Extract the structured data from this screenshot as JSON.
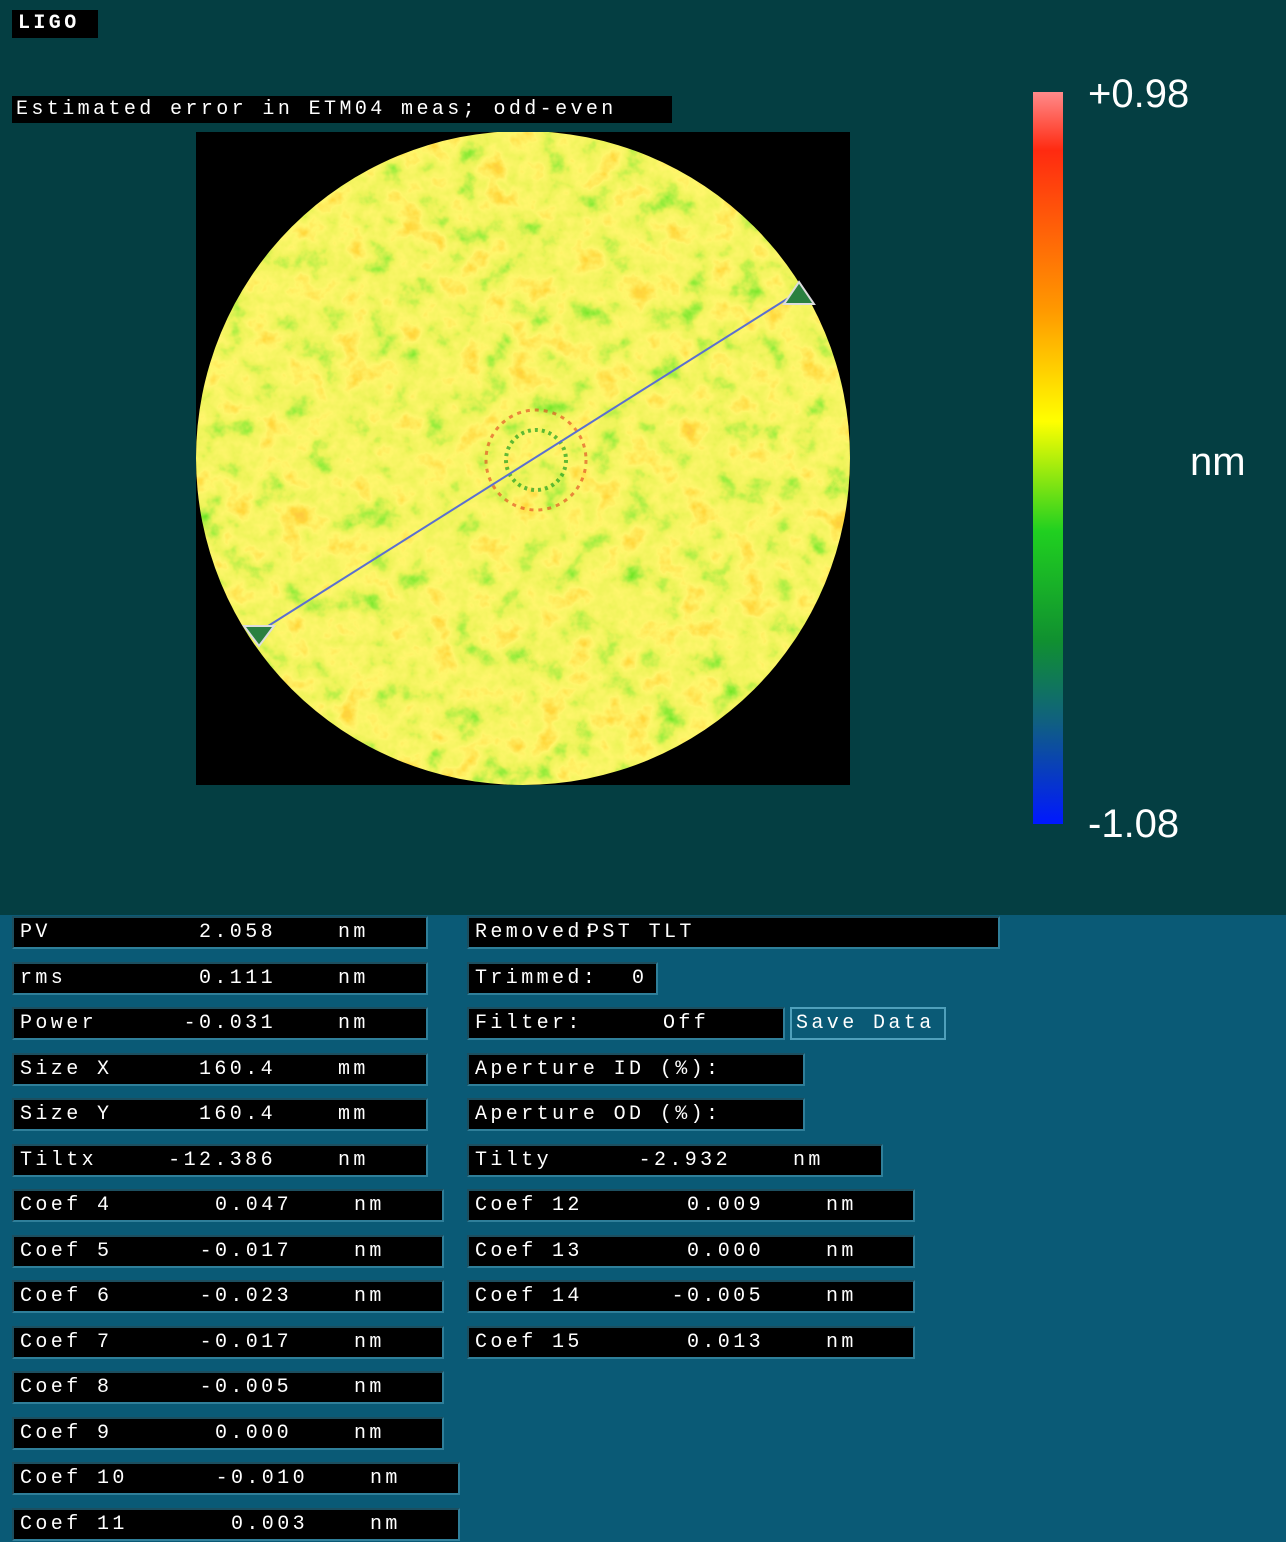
{
  "header": {
    "title": "LIGO"
  },
  "plot": {
    "title": "Estimated error in ETM04 meas; odd-even",
    "colorbar": {
      "max": "+0.98",
      "min": "-1.08",
      "unit": "nm"
    }
  },
  "left_fields": [
    {
      "label": "PV",
      "value": "2.058",
      "unit": "nm"
    },
    {
      "label": "rms",
      "value": "0.111",
      "unit": "nm"
    },
    {
      "label": "Power",
      "value": "-0.031",
      "unit": "nm"
    },
    {
      "label": "Size X",
      "value": "160.4",
      "unit": "mm"
    },
    {
      "label": "Size Y",
      "value": "160.4",
      "unit": "mm"
    },
    {
      "label": "Tiltx",
      "value": "-12.386",
      "unit": "nm"
    },
    {
      "label": "Coef 4",
      "value": "0.047",
      "unit": "nm"
    },
    {
      "label": "Coef 5",
      "value": "-0.017",
      "unit": "nm"
    },
    {
      "label": "Coef 6",
      "value": "-0.023",
      "unit": "nm"
    },
    {
      "label": "Coef 7",
      "value": "-0.017",
      "unit": "nm"
    },
    {
      "label": "Coef 8",
      "value": "-0.005",
      "unit": "nm"
    },
    {
      "label": "Coef 9",
      "value": "0.000",
      "unit": "nm"
    },
    {
      "label": "Coef 10",
      "value": "-0.010",
      "unit": "nm"
    },
    {
      "label": "Coef 11",
      "value": "0.003",
      "unit": "nm"
    }
  ],
  "right_fields": [
    {
      "label": "Removed:",
      "value": "PST TLT"
    },
    {
      "label": "Trimmed:",
      "value": "0"
    },
    {
      "label": "Filter:",
      "value": "Off"
    },
    {
      "label": "Aperture ID (%):"
    },
    {
      "label": "Aperture OD (%):"
    },
    {
      "label": "Tilty",
      "value": "-2.932",
      "unit": "nm"
    },
    {
      "label": "Coef 12",
      "value": "0.009",
      "unit": "nm"
    },
    {
      "label": "Coef 13",
      "value": "0.000",
      "unit": "nm"
    },
    {
      "label": "Coef 14",
      "value": "-0.005",
      "unit": "nm"
    },
    {
      "label": "Coef 15",
      "value": "0.013",
      "unit": "nm"
    }
  ],
  "button": "Save Data"
}
